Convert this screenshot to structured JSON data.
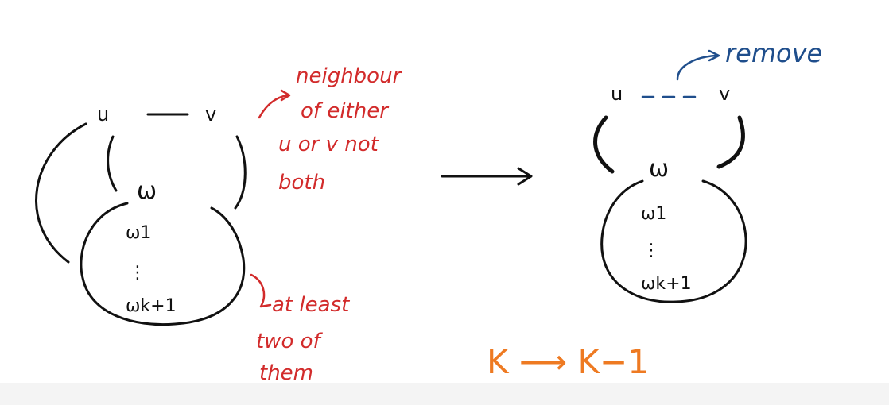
{
  "left_graph": {
    "node_u": "u",
    "node_v": "v",
    "node_w": "ω",
    "cluster_top": "ω1",
    "cluster_dots": "⋮",
    "cluster_bottom": "ωk+1"
  },
  "right_graph": {
    "node_u": "u",
    "node_v": "v",
    "node_w": "ω",
    "cluster_top": "ω1",
    "cluster_dots": "⋮",
    "cluster_bottom": "ωk+1"
  },
  "annotations": {
    "neighbour_line1": "neighbour",
    "neighbour_line2": "of either",
    "neighbour_line3": "u or v not",
    "neighbour_line4": "both",
    "atleast_line1": "at least",
    "atleast_line2": "two of",
    "atleast_line3": "them",
    "remove": "remove",
    "k_transition": "K ⟶ K−1"
  },
  "colors": {
    "ink": "#111111",
    "red": "#d22b2b",
    "blue": "#1f4e8c",
    "orange": "#ee7a22"
  }
}
